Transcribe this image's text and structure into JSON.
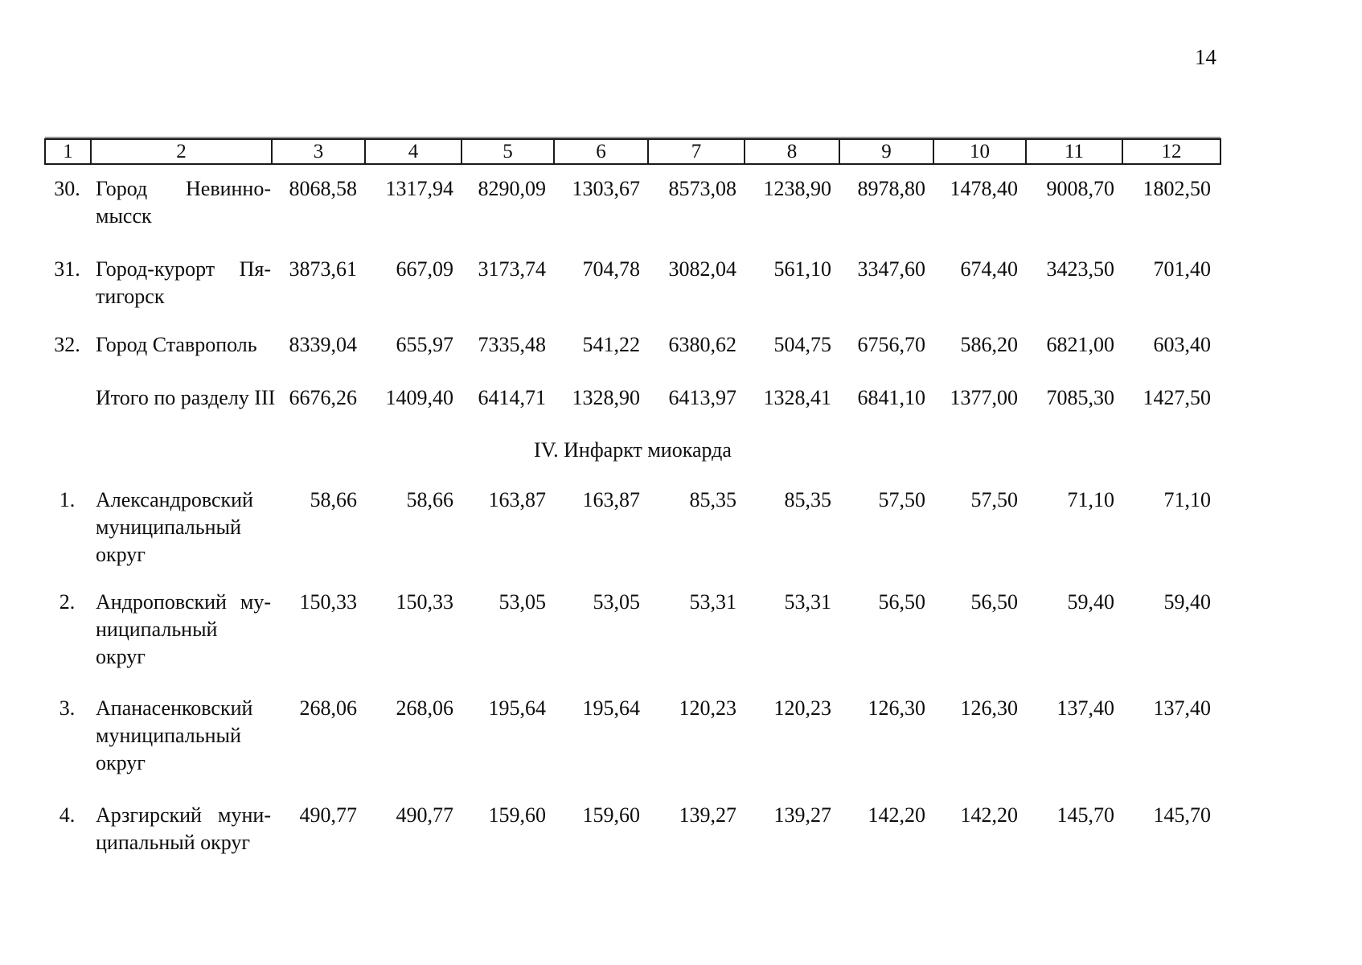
{
  "page": {
    "number": "14"
  },
  "table": {
    "header_cols": [
      "1",
      "2",
      "3",
      "4",
      "5",
      "6",
      "7",
      "8",
      "9",
      "10",
      "11",
      "12"
    ],
    "section3_rows": [
      {
        "num": "30.",
        "name_lines": [
          "Город Невинно-",
          "мысск"
        ],
        "values": [
          "8068,58",
          "1317,94",
          "8290,09",
          "1303,67",
          "8573,08",
          "1238,90",
          "8978,80",
          "1478,40",
          "9008,70",
          "1802,50"
        ]
      },
      {
        "num": "31.",
        "name_lines": [
          "Город-курорт Пя-",
          "тигорск"
        ],
        "values": [
          "3873,61",
          "667,09",
          "3173,74",
          "704,78",
          "3082,04",
          "561,10",
          "3347,60",
          "674,40",
          "3423,50",
          "701,40"
        ]
      },
      {
        "num": "32.",
        "name_lines": [
          "Город Ставрополь"
        ],
        "values": [
          "8339,04",
          "655,97",
          "7335,48",
          "541,22",
          "6380,62",
          "504,75",
          "6756,70",
          "586,20",
          "6821,00",
          "603,40"
        ]
      },
      {
        "num": "",
        "name_lines": [
          "Итого по разделу III"
        ],
        "values": [
          "6676,26",
          "1409,40",
          "6414,71",
          "1328,90",
          "6413,97",
          "1328,41",
          "6841,10",
          "1377,00",
          "7085,30",
          "1427,50"
        ],
        "is_total": true
      }
    ],
    "section4_title": "IV. Инфаркт миокарда",
    "section4_rows": [
      {
        "num": "1.",
        "name_lines": [
          "Александровский",
          "муниципальный",
          "округ"
        ],
        "values": [
          "58,66",
          "58,66",
          "163,87",
          "163,87",
          "85,35",
          "85,35",
          "57,50",
          "57,50",
          "71,10",
          "71,10"
        ]
      },
      {
        "num": "2.",
        "name_lines": [
          "Андроповский му-",
          "ниципальный",
          "округ"
        ],
        "values": [
          "150,33",
          "150,33",
          "53,05",
          "53,05",
          "53,31",
          "53,31",
          "56,50",
          "56,50",
          "59,40",
          "59,40"
        ]
      },
      {
        "num": "3.",
        "name_lines": [
          "Апанасенковский",
          "муниципальный",
          "округ"
        ],
        "values": [
          "268,06",
          "268,06",
          "195,64",
          "195,64",
          "120,23",
          "120,23",
          "126,30",
          "126,30",
          "137,40",
          "137,40"
        ]
      },
      {
        "num": "4.",
        "name_lines": [
          "Арзгирский муни-",
          "ципальный округ"
        ],
        "values": [
          "490,77",
          "490,77",
          "159,60",
          "159,60",
          "139,27",
          "139,27",
          "142,20",
          "142,20",
          "145,70",
          "145,70"
        ]
      }
    ]
  }
}
